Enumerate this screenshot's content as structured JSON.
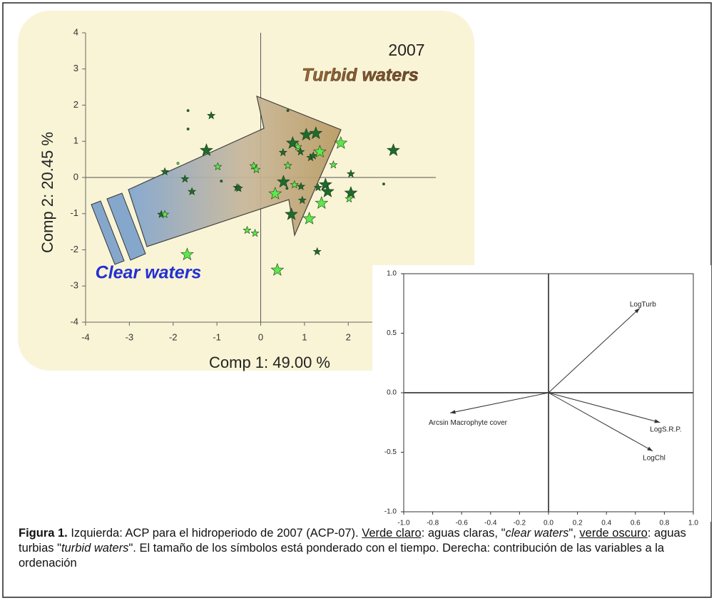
{
  "chart_data": [
    {
      "type": "scatter",
      "title": "2007",
      "annotations": [
        "Turbid waters",
        "Clear waters"
      ],
      "x_label": "Comp 1: 49.00 %",
      "y_label": "Comp 2: 20.45 %",
      "xlim": [
        -4,
        4
      ],
      "ylim": [
        -4,
        4
      ],
      "xticks": [
        -4,
        -3,
        -2,
        -1,
        0,
        1,
        2
      ],
      "yticks": [
        -4,
        -3,
        -2,
        -1,
        0,
        1,
        2,
        3,
        4
      ],
      "series": [
        {
          "color": "#1f6b2c",
          "x": [
            3.03,
            1.04,
            1.26,
            0.73,
            0.51,
            0.91,
            1.14,
            1.48,
            1.53,
            1.31,
            0.52,
            0.7,
            0.95,
            1.29,
            2.06,
            2.06,
            -1.24,
            -1.73,
            -1.57,
            -0.54,
            -0.5,
            -1.13,
            -2.27,
            -2.19,
            -1.66,
            -1.66,
            2.81,
            0.62,
            -0.9,
            0.6,
            0.92,
            1.2
          ],
          "values": [
            0.75,
            1.18,
            1.22,
            0.95,
            0.69,
            0.71,
            0.55,
            -0.2,
            -0.39,
            -0.28,
            -0.12,
            -1.02,
            -0.63,
            -2.05,
            -0.43,
            0.1,
            0.75,
            -0.04,
            -0.39,
            -0.28,
            -0.3,
            1.71,
            -1.02,
            0.16,
            1.85,
            1.34,
            -0.18,
            1.85,
            -0.1,
            -0.3,
            -0.25,
            0.6
          ],
          "sizes": [
            3,
            3,
            3,
            3,
            2,
            2,
            2,
            3,
            3,
            2,
            3,
            3,
            2,
            2,
            3,
            2,
            3,
            2,
            2,
            2,
            2,
            2,
            2,
            2,
            1,
            1,
            1,
            1,
            1,
            1,
            2,
            2
          ]
        },
        {
          "color": "#5de84a",
          "x": [
            1.83,
            1.35,
            -1.68,
            0.38,
            0.33,
            1.39,
            1.11,
            -0.31,
            -0.13,
            1.66,
            0.77,
            -0.16,
            2.02,
            0.62,
            -0.98,
            -1.89,
            -2.19,
            0.85,
            -0.1
          ],
          "values": [
            0.95,
            0.71,
            -2.13,
            -2.56,
            -0.45,
            -0.71,
            -1.14,
            -1.46,
            -1.54,
            0.35,
            -0.2,
            0.32,
            -0.59,
            0.33,
            0.3,
            0.39,
            -1.02,
            0.85,
            0.22
          ],
          "sizes": [
            3,
            3,
            3,
            3,
            3,
            3,
            3,
            2,
            2,
            2,
            2,
            2,
            2,
            2,
            2,
            1,
            2,
            2,
            2
          ]
        }
      ]
    },
    {
      "type": "vector",
      "xlim": [
        -1,
        1
      ],
      "ylim": [
        -1,
        1
      ],
      "xticks": [
        {
          "value": -1,
          "label": "-1.0"
        },
        {
          "value": -0.8,
          "label": "-0.8"
        },
        {
          "value": -0.6,
          "label": "-0.6"
        },
        {
          "value": -0.4,
          "label": "-0.4"
        },
        {
          "value": -0.2,
          "label": "-0.2"
        },
        {
          "value": 0,
          "label": "0.0"
        },
        0.2,
        0.4,
        0.6,
        0.8,
        {
          "value": 1,
          "label": "1.0"
        }
      ],
      "yticks": [
        {
          "value": -1,
          "label": "-1.0"
        },
        -0.5,
        {
          "value": 0,
          "label": "0.0"
        },
        0.5,
        {
          "value": 1,
          "label": "1.0"
        }
      ],
      "vectors": [
        {
          "label": "LogTurb",
          "x": 0.63,
          "y": 0.71
        },
        {
          "label": "LogS.R.P.",
          "x": 0.77,
          "y": -0.25
        },
        {
          "label": "LogChl",
          "x": 0.72,
          "y": -0.49
        },
        {
          "label": "Arcsin Macrophyte cover",
          "x": -0.68,
          "y": -0.17
        }
      ]
    }
  ],
  "caption": [
    "Figura 1.",
    " Izquierda: ACP para el hidroperiodo de 2007 (ACP-07). ",
    "Verde claro",
    ": aguas claras, \"",
    "clear waters",
    "\", ",
    "verde oscuro",
    ": aguas turbias \"",
    "turbid waters",
    "\". El tamaño de los símbolos está ponderado con el tiempo.  Derecha: contribución de las variables a la ordenación"
  ]
}
